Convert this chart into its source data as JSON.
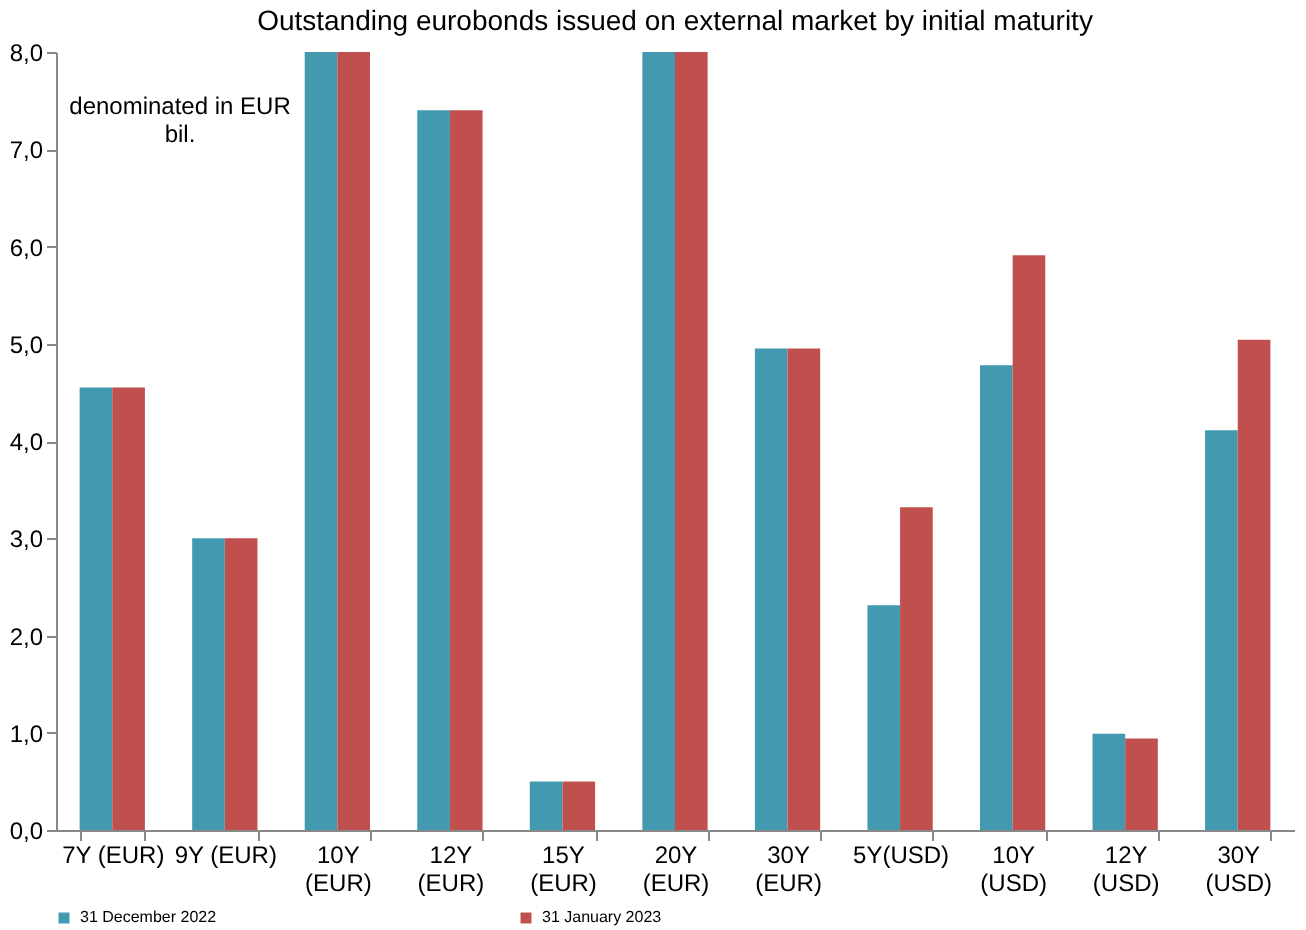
{
  "chart_data": {
    "type": "bar",
    "title": "Outstanding eurobonds issued on external market by initial maturity",
    "annotations": [
      "denominated in EUR bil."
    ],
    "categories": [
      "7Y (EUR)",
      "9Y (EUR)",
      "10Y (EUR)",
      "12Y (EUR)",
      "15Y (EUR)",
      "20Y (EUR)",
      "30Y (EUR)",
      "5Y(USD)",
      "10Y (USD)",
      "12Y (USD)",
      "30Y (USD)"
    ],
    "series": [
      {
        "name": "31 December 2022",
        "color": "#4299b0",
        "values": [
          4.55,
          3.0,
          8.0,
          7.4,
          0.5,
          8.0,
          4.95,
          2.31,
          4.78,
          0.99,
          4.11
        ]
      },
      {
        "name": "31 January 2023",
        "color": "#c0504d",
        "values": [
          4.55,
          3.0,
          8.0,
          7.4,
          0.5,
          8.0,
          4.95,
          3.32,
          5.91,
          0.94,
          5.04
        ]
      }
    ],
    "ylim": [
      0,
      8
    ],
    "yticks": [
      {
        "value": 0,
        "label": "0,0"
      },
      {
        "value": 1,
        "label": "1,0"
      },
      {
        "value": 2,
        "label": "2,0"
      },
      {
        "value": 3,
        "label": "3,0"
      },
      {
        "value": 4,
        "label": "4,0"
      },
      {
        "value": 5,
        "label": "5,0"
      },
      {
        "value": 6,
        "label": "6,0"
      },
      {
        "value": 7,
        "label": "7,0"
      },
      {
        "value": 8,
        "label": "8,0"
      }
    ],
    "grid": false,
    "legend": "bottom"
  }
}
